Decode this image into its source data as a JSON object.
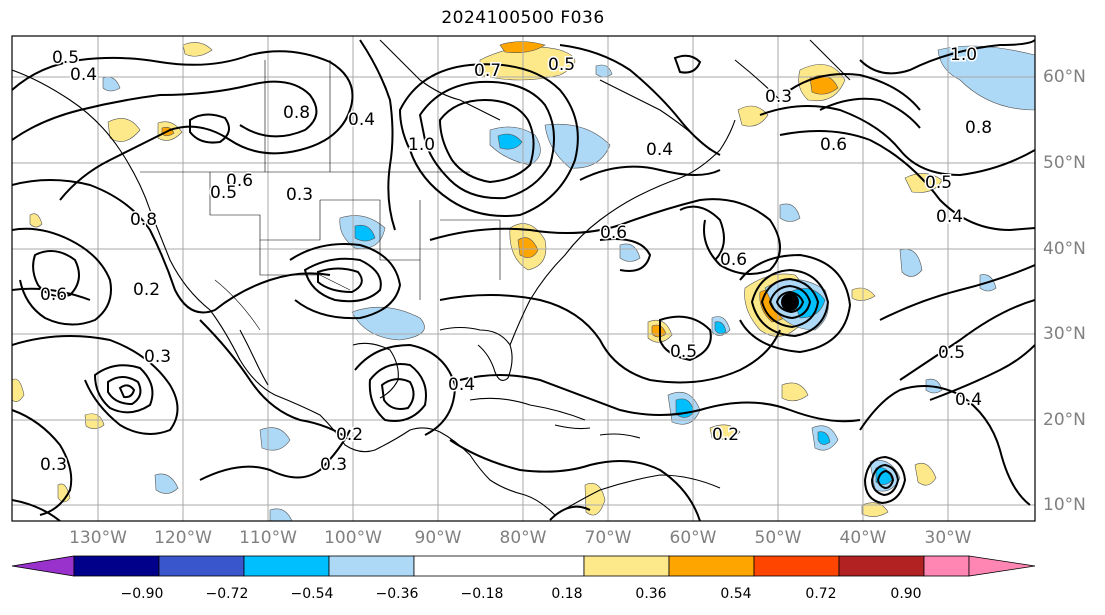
{
  "title": "2024100500 F036",
  "lon_labels": [
    "130°W",
    "120°W",
    "110°W",
    "100°W",
    "90°W",
    "80°W",
    "70°W",
    "60°W",
    "50°W",
    "40°W",
    "30°W"
  ],
  "lat_labels": [
    "60°N",
    "50°N",
    "40°N",
    "30°N",
    "20°N",
    "10°N"
  ],
  "colorbar": {
    "ticks": [
      "−0.90",
      "−0.72",
      "−0.54",
      "−0.36",
      "−0.18",
      "0.18",
      "0.36",
      "0.54",
      "0.72",
      "0.90"
    ],
    "colors": [
      "#9932cc",
      "#00008b",
      "#3a56cc",
      "#00bfff",
      "#add8f6",
      "#ffffff",
      "#fde98a",
      "#ffa500",
      "#ff4500",
      "#b22222",
      "#ff85b3"
    ]
  },
  "contour_labels": [
    "0.5",
    "0.4",
    "0.6",
    "0.8",
    "0.7",
    "1.0",
    "0.3",
    "0.2",
    "0.5",
    "0.4",
    "0.6",
    "1.0",
    "0.5",
    "0.4",
    "0.8",
    "0.6",
    "0.3",
    "0.5",
    "0.2",
    "0.3",
    "0.4",
    "0.2",
    "0.3",
    "0.6",
    "0.4",
    "0.5",
    "0.6",
    "0.4",
    "0.8",
    "0.3",
    "0.5"
  ]
}
